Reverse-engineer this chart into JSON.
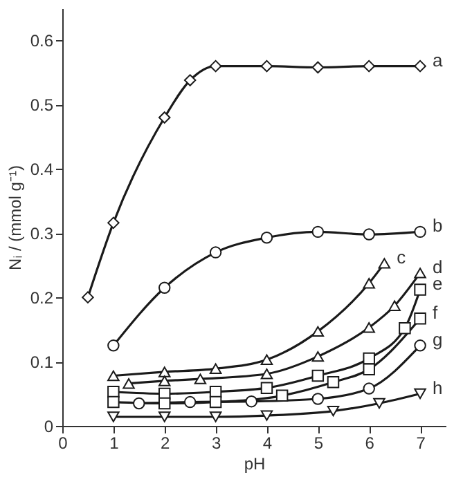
{
  "chart_data": {
    "type": "line",
    "xlabel": "pH",
    "ylabel": "Nᵢ / (mmol g⁻¹)",
    "xlim": [
      0,
      7.5
    ],
    "xticks": [
      0,
      1,
      2,
      3,
      4,
      5,
      6,
      7
    ],
    "ylim": [
      0,
      0.65
    ],
    "yticks": [
      {
        "value": 0,
        "label": "0"
      },
      0.1,
      0.2,
      0.3,
      0.4,
      0.5,
      0.6
    ],
    "grid": false,
    "legend": false,
    "line_style": "solid",
    "series": [
      {
        "name": "a",
        "color": "#1a1a1a",
        "marker": "diamond",
        "x": [
          0.5,
          1,
          2,
          2.5,
          3,
          4,
          5,
          6,
          7
        ],
        "values": [
          0.2,
          0.316,
          0.48,
          0.538,
          0.56,
          0.56,
          0.558,
          0.56,
          0.56
        ]
      },
      {
        "name": "b",
        "color": "#1a1a1a",
        "marker": "circle",
        "x": [
          1,
          2,
          3,
          4,
          5,
          6,
          7
        ],
        "values": [
          0.125,
          0.215,
          0.27,
          0.293,
          0.302,
          0.298,
          0.302
        ]
      },
      {
        "name": "c",
        "color": "#1a1a1a",
        "marker": "triangle",
        "x": [
          1,
          2,
          3,
          4,
          5,
          6,
          6.3
        ],
        "values": [
          0.078,
          0.084,
          0.089,
          0.103,
          0.147,
          0.222,
          0.253
        ]
      },
      {
        "name": "d",
        "color": "#1a1a1a",
        "marker": "triangle",
        "x": [
          1.3,
          2,
          2.7,
          4,
          5,
          6,
          6.5,
          7
        ],
        "values": [
          0.066,
          0.07,
          0.073,
          0.081,
          0.108,
          0.153,
          0.187,
          0.238
        ]
      },
      {
        "name": "e",
        "color": "#1a1a1a",
        "marker": "square",
        "x": [
          1,
          2,
          3,
          4,
          5,
          6,
          6.7,
          7
        ],
        "values": [
          0.053,
          0.05,
          0.053,
          0.059,
          0.078,
          0.105,
          0.152,
          0.212
        ]
      },
      {
        "name": "f",
        "color": "#1a1a1a",
        "marker": "square",
        "x": [
          1,
          2,
          3,
          4.3,
          5.3,
          6,
          7
        ],
        "values": [
          0.037,
          0.035,
          0.037,
          0.047,
          0.068,
          0.088,
          0.167
        ]
      },
      {
        "name": "g",
        "color": "#1a1a1a",
        "marker": "circle",
        "x": [
          1.5,
          2.5,
          3.7,
          5,
          6,
          7
        ],
        "values": [
          0.035,
          0.037,
          0.038,
          0.042,
          0.058,
          0.125
        ]
      },
      {
        "name": "h",
        "color": "#1a1a1a",
        "marker": "triangle-down",
        "x": [
          1,
          2,
          3,
          4,
          5.3,
          6.2,
          7
        ],
        "values": [
          0.014,
          0.014,
          0.014,
          0.016,
          0.023,
          0.035,
          0.05
        ]
      }
    ]
  }
}
